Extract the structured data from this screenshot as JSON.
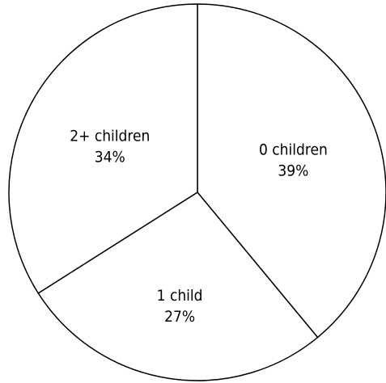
{
  "chart_data": {
    "type": "pie",
    "slices": [
      {
        "label": "0 children",
        "value": 39,
        "value_label": "39%"
      },
      {
        "label": "1 child",
        "value": 27,
        "value_label": "27%"
      },
      {
        "label": "2+ children",
        "value": 34,
        "value_label": "34%"
      }
    ],
    "start_angle": "12 o'clock",
    "direction": "clockwise",
    "fill_color": "#ffffff",
    "stroke_color": "#000000",
    "legend": "none"
  }
}
